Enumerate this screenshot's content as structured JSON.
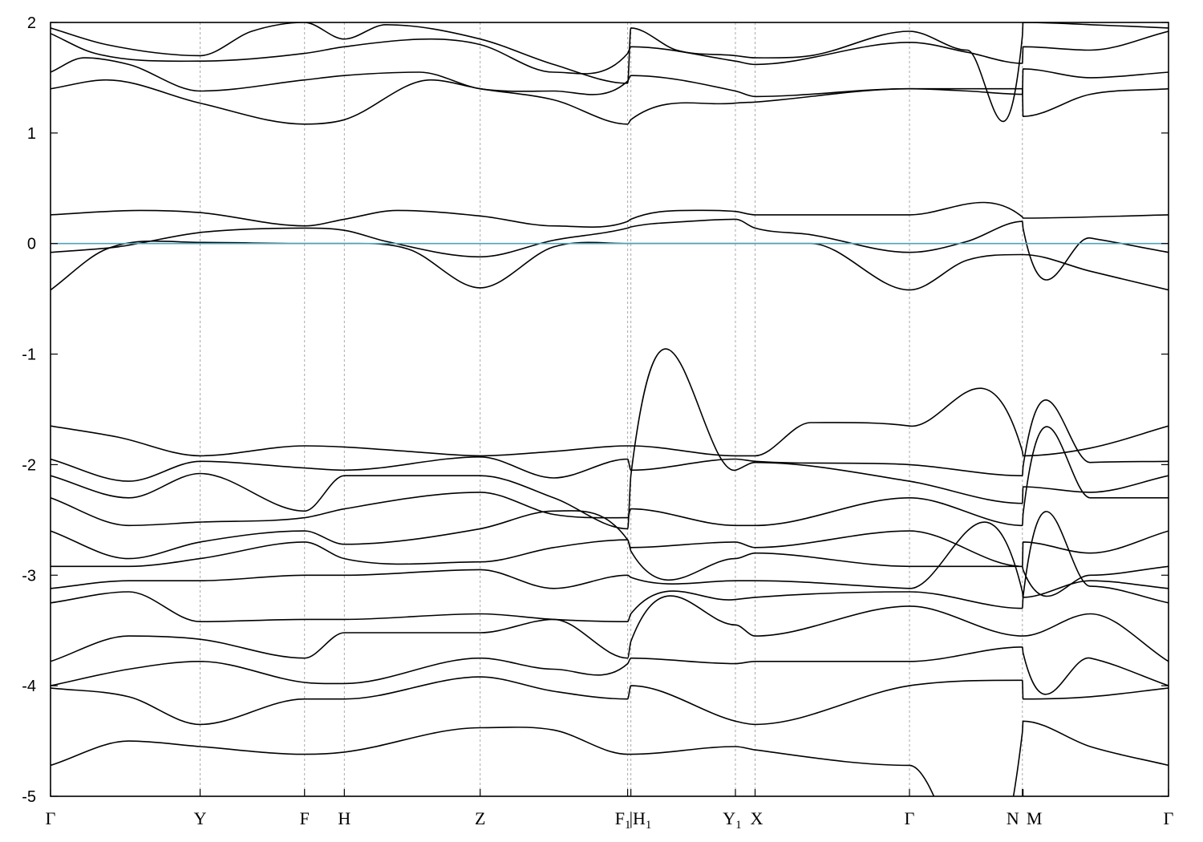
{
  "chart_data": {
    "type": "line",
    "title": "",
    "xlabel": "",
    "ylabel": "",
    "ylim": [
      -5,
      2
    ],
    "yticks": [
      {
        "value": 2,
        "label": "2"
      },
      {
        "value": 1,
        "label": "1"
      },
      {
        "value": 0,
        "label": "0"
      },
      {
        "value": -1,
        "label": "-1"
      },
      {
        "value": -2,
        "label": "-2"
      },
      {
        "value": -3,
        "label": "-3"
      },
      {
        "value": -4,
        "label": "-4"
      },
      {
        "value": -5,
        "label": "-5"
      }
    ],
    "xlim": [
      0,
      1
    ],
    "kpoints": [
      {
        "x": 0.0,
        "label": "Γ",
        "sub": ""
      },
      {
        "x": 0.1338,
        "label": "Y",
        "sub": ""
      },
      {
        "x": 0.2272,
        "label": "F",
        "sub": ""
      },
      {
        "x": 0.2628,
        "label": "H",
        "sub": ""
      },
      {
        "x": 0.3843,
        "label": "Z",
        "sub": ""
      },
      {
        "x": 0.5162,
        "label": "F",
        "sub": "1"
      },
      {
        "x": 0.5191,
        "label": "|H",
        "sub": "1"
      },
      {
        "x": 0.6126,
        "label": "Y",
        "sub": "1"
      },
      {
        "x": 0.6302,
        "label": "X",
        "sub": ""
      },
      {
        "x": 0.7683,
        "label": "Γ",
        "sub": ""
      },
      {
        "x": 0.8693,
        "label": "N",
        "sub": ""
      },
      {
        "x": 0.8699,
        "label": "M",
        "sub": ""
      },
      {
        "x": 1.0,
        "label": "Γ",
        "sub": ""
      }
    ],
    "vlines": [
      0.1338,
      0.2272,
      0.2628,
      0.3843,
      0.5162,
      0.5191,
      0.6126,
      0.6302,
      0.7683,
      0.8693
    ],
    "fermi_level": 0,
    "colors": {
      "bands": "#000000",
      "fermi": "#4fa3bd",
      "grid": "#a9a9a9"
    },
    "grid": false,
    "legend": "none",
    "series": [
      {
        "x": [
          0,
          0.05,
          0.1338,
          0.18,
          0.2272,
          0.2628,
          0.3,
          0.3843,
          0.45,
          0.5162,
          0.5191,
          0.56,
          0.6126,
          0.6302,
          0.68,
          0.7683,
          0.82,
          0.8693,
          0.8699,
          0.93,
          1.0
        ],
        "y": [
          1.95,
          1.8,
          1.7,
          1.92,
          2.0,
          1.85,
          1.98,
          1.85,
          1.62,
          1.45,
          1.95,
          1.75,
          1.7,
          1.68,
          1.7,
          1.92,
          1.75,
          1.88,
          2.0,
          1.98,
          1.95
        ]
      },
      {
        "x": [
          0,
          0.04,
          0.1338,
          0.2272,
          0.2628,
          0.34,
          0.3843,
          0.45,
          0.5162,
          0.5191,
          0.6126,
          0.6302,
          0.7683,
          0.82,
          0.8693,
          0.8699,
          0.93,
          1.0
        ],
        "y": [
          1.9,
          1.72,
          1.65,
          1.72,
          1.78,
          1.85,
          1.8,
          1.55,
          1.72,
          1.78,
          1.65,
          1.62,
          1.82,
          1.73,
          1.63,
          1.78,
          1.75,
          1.92
        ]
      },
      {
        "x": [
          0,
          0.03,
          0.07,
          0.1338,
          0.2272,
          0.2628,
          0.33,
          0.3843,
          0.45,
          0.5162,
          0.5191,
          0.6126,
          0.6302,
          0.7683,
          0.82,
          0.8693,
          0.8699,
          0.93,
          1.0
        ],
        "y": [
          1.55,
          1.68,
          1.62,
          1.38,
          1.48,
          1.52,
          1.55,
          1.4,
          1.38,
          1.47,
          1.52,
          1.38,
          1.33,
          1.4,
          1.38,
          1.35,
          1.58,
          1.5,
          1.55
        ]
      },
      {
        "x": [
          0,
          0.05,
          0.1338,
          0.2272,
          0.2628,
          0.34,
          0.3843,
          0.45,
          0.5162,
          0.5191,
          0.6126,
          0.6302,
          0.7683,
          0.8693,
          0.8699,
          0.93,
          1.0
        ],
        "y": [
          1.4,
          1.48,
          1.27,
          1.08,
          1.12,
          1.48,
          1.4,
          1.3,
          1.08,
          1.12,
          1.27,
          1.28,
          1.4,
          1.4,
          1.15,
          1.35,
          1.4
        ]
      },
      {
        "x": [
          0,
          0.08,
          0.1338,
          0.2272,
          0.2628,
          0.31,
          0.3843,
          0.45,
          0.5162,
          0.5191,
          0.57,
          0.6126,
          0.6302,
          0.7683,
          0.8693,
          0.8699,
          1.0
        ],
        "y": [
          0.26,
          0.3,
          0.28,
          0.16,
          0.22,
          0.3,
          0.25,
          0.16,
          0.2,
          0.22,
          0.3,
          0.29,
          0.26,
          0.26,
          0.24,
          0.23,
          0.26
        ]
      },
      {
        "x": [
          0,
          0.06,
          0.1338,
          0.2272,
          0.2628,
          0.3,
          0.3843,
          0.45,
          0.5162,
          0.5191,
          0.57,
          0.6126,
          0.6302,
          0.68,
          0.7683,
          0.82,
          0.8693,
          0.8699,
          0.93,
          1.0
        ],
        "y": [
          -0.08,
          -0.03,
          0.1,
          0.14,
          0.12,
          0.02,
          -0.12,
          0.03,
          0.14,
          0.15,
          0.2,
          0.22,
          0.14,
          0.08,
          -0.08,
          0.02,
          0.2,
          0.14,
          0.05,
          -0.08
        ]
      },
      {
        "x": [
          0,
          0.05,
          0.1338,
          0.2272,
          0.2628,
          0.32,
          0.3843,
          0.45,
          0.5162,
          0.5191,
          0.6126,
          0.6302,
          0.68,
          0.7683,
          0.82,
          0.8693,
          0.8699,
          0.93,
          1.0
        ],
        "y": [
          -0.42,
          -0.05,
          0.01,
          0.0,
          0.0,
          -0.05,
          -0.4,
          -0.03,
          0.0,
          0.0,
          0.0,
          0.0,
          0.0,
          -0.42,
          -0.15,
          -0.1,
          -0.1,
          -0.25,
          -0.42
        ]
      },
      {
        "x": [
          0,
          0.06,
          0.1338,
          0.2272,
          0.2628,
          0.32,
          0.3843,
          0.45,
          0.5162,
          0.5191,
          0.6126,
          0.6302,
          0.68,
          0.7683,
          0.8693,
          0.8699,
          0.93,
          1.0
        ],
        "y": [
          -1.65,
          -1.75,
          -1.92,
          -1.83,
          -1.84,
          -1.88,
          -1.92,
          -1.88,
          -1.83,
          -1.83,
          -1.92,
          -1.92,
          -1.62,
          -1.65,
          -1.88,
          -1.92,
          -1.85,
          -1.65
        ]
      },
      {
        "x": [
          0,
          0.07,
          0.1338,
          0.2272,
          0.2628,
          0.3843,
          0.45,
          0.5162,
          0.5191,
          0.6126,
          0.6302,
          0.7683,
          0.8693,
          0.8699,
          0.93,
          1.0
        ],
        "y": [
          -1.95,
          -2.15,
          -1.97,
          -2.03,
          -2.05,
          -1.93,
          -2.12,
          -1.95,
          -2.05,
          -1.95,
          -1.97,
          -2.0,
          -2.1,
          -2.02,
          -1.98,
          -1.97
        ]
      },
      {
        "x": [
          0,
          0.07,
          0.1338,
          0.2272,
          0.2628,
          0.3843,
          0.45,
          0.5162,
          0.5191,
          0.6126,
          0.6302,
          0.7683,
          0.8693,
          0.8699,
          0.93,
          1.0
        ],
        "y": [
          -2.1,
          -2.3,
          -2.08,
          -2.42,
          -2.1,
          -2.1,
          -2.3,
          -2.58,
          -2.1,
          -2.05,
          -1.98,
          -2.15,
          -2.35,
          -2.2,
          -2.25,
          -2.1
        ]
      },
      {
        "x": [
          0,
          0.07,
          0.1338,
          0.2272,
          0.2628,
          0.3843,
          0.45,
          0.5162,
          0.5191,
          0.6126,
          0.6302,
          0.7683,
          0.8693,
          0.8699,
          0.93,
          1.0
        ],
        "y": [
          -2.3,
          -2.55,
          -2.52,
          -2.48,
          -2.4,
          -2.25,
          -2.45,
          -2.48,
          -2.4,
          -2.55,
          -2.55,
          -2.3,
          -2.55,
          -2.45,
          -2.3,
          -2.3
        ]
      },
      {
        "x": [
          0,
          0.07,
          0.1338,
          0.2272,
          0.2628,
          0.3843,
          0.45,
          0.5162,
          0.5191,
          0.6126,
          0.6302,
          0.7683,
          0.8693,
          0.8699,
          0.93,
          1.0
        ],
        "y": [
          -2.6,
          -2.85,
          -2.7,
          -2.6,
          -2.72,
          -2.58,
          -2.42,
          -2.68,
          -2.75,
          -2.7,
          -2.75,
          -2.6,
          -2.92,
          -2.7,
          -2.8,
          -2.6
        ]
      },
      {
        "x": [
          0,
          0.07,
          0.1338,
          0.2272,
          0.2628,
          0.3843,
          0.45,
          0.5162,
          0.5191,
          0.6126,
          0.6302,
          0.7683,
          0.8693,
          0.8699,
          0.93,
          1.0
        ],
        "y": [
          -2.92,
          -2.92,
          -2.85,
          -2.7,
          -2.85,
          -2.88,
          -2.75,
          -2.68,
          -2.78,
          -2.85,
          -2.8,
          -2.92,
          -2.92,
          -2.95,
          -3.0,
          -2.92
        ]
      },
      {
        "x": [
          0,
          0.07,
          0.1338,
          0.2272,
          0.2628,
          0.3843,
          0.45,
          0.5162,
          0.5191,
          0.6126,
          0.6302,
          0.7683,
          0.8693,
          0.8699,
          0.93,
          1.0
        ],
        "y": [
          -3.12,
          -3.05,
          -3.05,
          -3.0,
          -3.0,
          -2.95,
          -3.12,
          -3.0,
          -3.02,
          -3.05,
          -3.05,
          -3.12,
          -3.15,
          -3.2,
          -3.05,
          -3.12
        ]
      },
      {
        "x": [
          0,
          0.07,
          0.1338,
          0.2272,
          0.2628,
          0.3843,
          0.45,
          0.5162,
          0.5191,
          0.6126,
          0.6302,
          0.7683,
          0.8693,
          0.8699,
          0.93,
          1.0
        ],
        "y": [
          -3.25,
          -3.15,
          -3.42,
          -3.4,
          -3.4,
          -3.35,
          -3.4,
          -3.42,
          -3.35,
          -3.22,
          -3.2,
          -3.15,
          -3.3,
          -3.2,
          -3.1,
          -3.25
        ]
      },
      {
        "x": [
          0,
          0.07,
          0.1338,
          0.2272,
          0.2628,
          0.3843,
          0.45,
          0.5162,
          0.5191,
          0.6126,
          0.6302,
          0.7683,
          0.8693,
          0.8699,
          0.93,
          1.0
        ],
        "y": [
          -3.78,
          -3.55,
          -3.58,
          -3.75,
          -3.52,
          -3.52,
          -3.4,
          -3.75,
          -3.6,
          -3.45,
          -3.55,
          -3.28,
          -3.55,
          -3.55,
          -3.35,
          -3.78
        ]
      },
      {
        "x": [
          0,
          0.07,
          0.1338,
          0.2272,
          0.2628,
          0.3843,
          0.45,
          0.5162,
          0.5191,
          0.6126,
          0.6302,
          0.7683,
          0.8693,
          0.8699,
          0.93,
          1.0
        ],
        "y": [
          -4.0,
          -3.85,
          -3.78,
          -3.97,
          -3.98,
          -3.75,
          -3.85,
          -3.8,
          -3.75,
          -3.8,
          -3.78,
          -3.78,
          -3.65,
          -3.7,
          -3.75,
          -4.0
        ]
      },
      {
        "x": [
          0,
          0.07,
          0.1338,
          0.2272,
          0.2628,
          0.3843,
          0.45,
          0.5162,
          0.5191,
          0.6126,
          0.6302,
          0.7683,
          0.8693,
          0.8699,
          0.93,
          1.0
        ],
        "y": [
          -4.02,
          -4.1,
          -4.35,
          -4.12,
          -4.12,
          -3.92,
          -4.05,
          -4.12,
          -4.0,
          -4.32,
          -4.35,
          -4.0,
          -3.95,
          -4.12,
          -4.1,
          -4.02
        ]
      },
      {
        "x": [
          0,
          0.07,
          0.1338,
          0.2272,
          0.2628,
          0.3843,
          0.45,
          0.5162,
          0.5191,
          0.6126,
          0.6302,
          0.7683,
          0.8693,
          0.8699,
          0.93,
          1.0
        ],
        "y": [
          -4.72,
          -4.5,
          -4.55,
          -4.62,
          -4.6,
          -4.38,
          -4.4,
          -4.62,
          -4.62,
          -4.55,
          -4.58,
          -4.72,
          -4.42,
          -4.32,
          -4.55,
          -4.72
        ]
      }
    ]
  }
}
